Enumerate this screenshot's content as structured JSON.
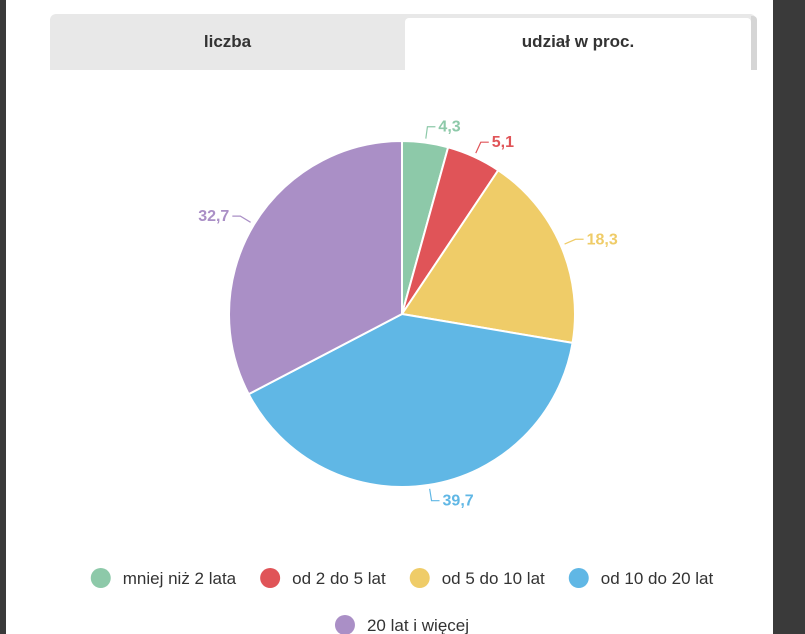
{
  "tabs": [
    {
      "label": "liczba",
      "active": false
    },
    {
      "label": "udział w proc.",
      "active": true
    }
  ],
  "chart_data": {
    "type": "pie",
    "title": "",
    "series": [
      {
        "name": "mniej niż 2 lata",
        "value": 4.3,
        "label": "4,3",
        "color": "#8dc9a9"
      },
      {
        "name": "od 2 do 5 lat",
        "value": 5.1,
        "label": "5,1",
        "color": "#e05458"
      },
      {
        "name": "od 5 do 10 lat",
        "value": 18.3,
        "label": "18,3",
        "color": "#efcc68"
      },
      {
        "name": "od 10 do 20 lat",
        "value": 39.7,
        "label": "39,7",
        "color": "#60b7e5"
      },
      {
        "name": "20 lat i więcej",
        "value": 32.7,
        "label": "32,7",
        "color": "#aa8fc6"
      }
    ],
    "legend_position": "bottom"
  }
}
